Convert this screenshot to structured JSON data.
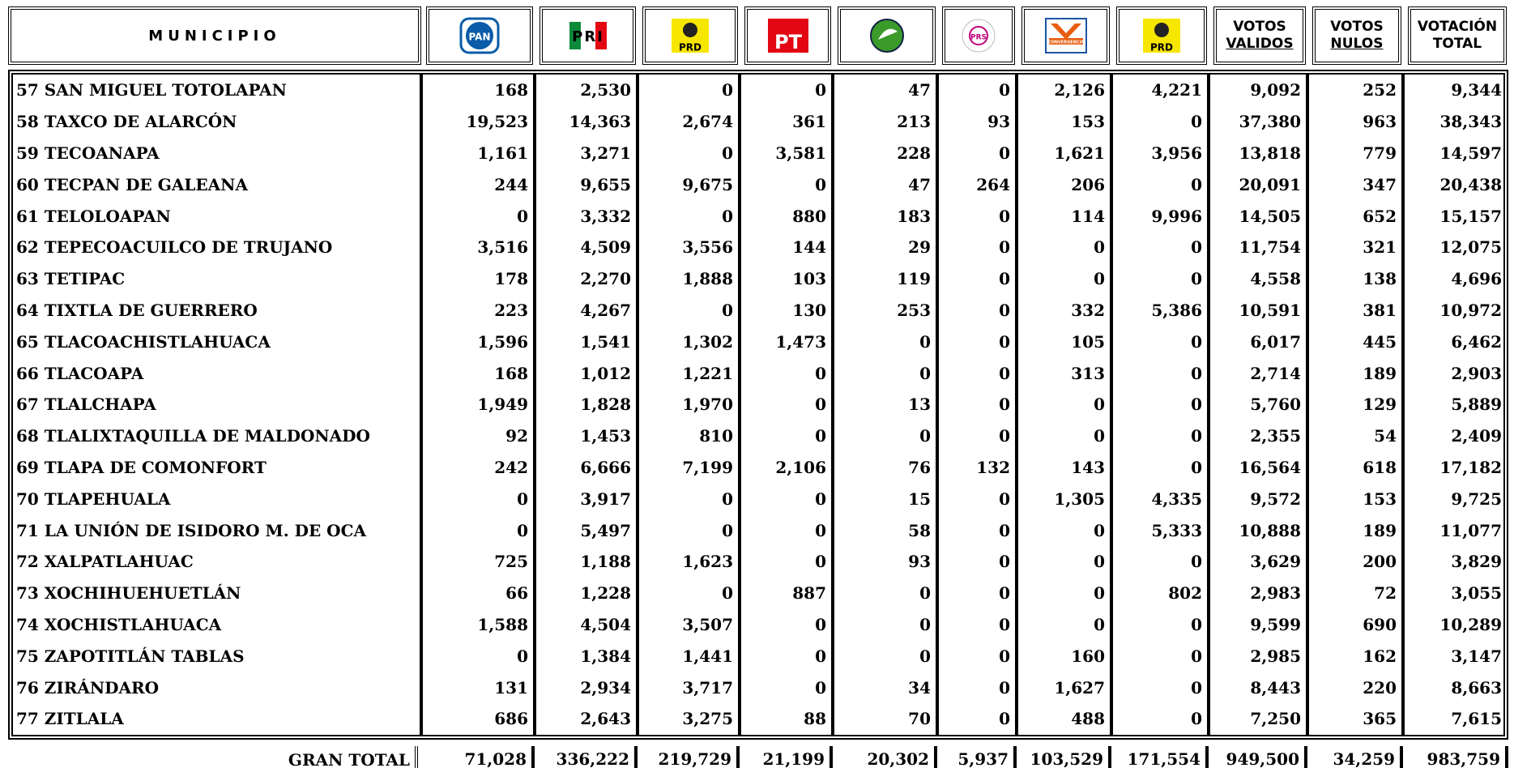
{
  "header": {
    "municipio": "MUNICIPIO",
    "logos": [
      "PAN",
      "PRI",
      null,
      "PT",
      null,
      "PRS",
      "CONVERGENCIA",
      "PRD"
    ],
    "logo_sub": [
      null,
      null,
      "PRD",
      null,
      null,
      null,
      null,
      null
    ],
    "totals": [
      [
        "VOTOS",
        "VALIDOS"
      ],
      [
        "VOTOS",
        "NULOS"
      ],
      [
        "VOTACIÓN",
        "TOTAL"
      ]
    ]
  },
  "table": {
    "rows": [
      [
        "57 SAN MIGUEL TOTOLAPAN",
        "168",
        "2,530",
        "0",
        "0",
        "47",
        "0",
        "2,126",
        "4,221",
        "9,092",
        "252",
        "9,344"
      ],
      [
        "58 TAXCO DE ALARCÓN",
        "19,523",
        "14,363",
        "2,674",
        "361",
        "213",
        "93",
        "153",
        "0",
        "37,380",
        "963",
        "38,343"
      ],
      [
        "59 TECOANAPA",
        "1,161",
        "3,271",
        "0",
        "3,581",
        "228",
        "0",
        "1,621",
        "3,956",
        "13,818",
        "779",
        "14,597"
      ],
      [
        "60 TECPAN DE GALEANA",
        "244",
        "9,655",
        "9,675",
        "0",
        "47",
        "264",
        "206",
        "0",
        "20,091",
        "347",
        "20,438"
      ],
      [
        "61 TELOLOAPAN",
        "0",
        "3,332",
        "0",
        "880",
        "183",
        "0",
        "114",
        "9,996",
        "14,505",
        "652",
        "15,157"
      ],
      [
        "62 TEPECOACUILCO DE TRUJANO",
        "3,516",
        "4,509",
        "3,556",
        "144",
        "29",
        "0",
        "0",
        "0",
        "11,754",
        "321",
        "12,075"
      ],
      [
        "63 TETIPAC",
        "178",
        "2,270",
        "1,888",
        "103",
        "119",
        "0",
        "0",
        "0",
        "4,558",
        "138",
        "4,696"
      ],
      [
        "64 TIXTLA DE GUERRERO",
        "223",
        "4,267",
        "0",
        "130",
        "253",
        "0",
        "332",
        "5,386",
        "10,591",
        "381",
        "10,972"
      ],
      [
        "65 TLACOACHISTLAHUACA",
        "1,596",
        "1,541",
        "1,302",
        "1,473",
        "0",
        "0",
        "105",
        "0",
        "6,017",
        "445",
        "6,462"
      ],
      [
        "66 TLACOAPA",
        "168",
        "1,012",
        "1,221",
        "0",
        "0",
        "0",
        "313",
        "0",
        "2,714",
        "189",
        "2,903"
      ],
      [
        "67 TLALCHAPA",
        "1,949",
        "1,828",
        "1,970",
        "0",
        "13",
        "0",
        "0",
        "0",
        "5,760",
        "129",
        "5,889"
      ],
      [
        "68 TLALIXTAQUILLA DE MALDONADO",
        "92",
        "1,453",
        "810",
        "0",
        "0",
        "0",
        "0",
        "0",
        "2,355",
        "54",
        "2,409"
      ],
      [
        "69 TLAPA DE COMONFORT",
        "242",
        "6,666",
        "7,199",
        "2,106",
        "76",
        "132",
        "143",
        "0",
        "16,564",
        "618",
        "17,182"
      ],
      [
        "70 TLAPEHUALA",
        "0",
        "3,917",
        "0",
        "0",
        "15",
        "0",
        "1,305",
        "4,335",
        "9,572",
        "153",
        "9,725"
      ],
      [
        "71 LA UNIÓN DE ISIDORO M. DE OCA",
        "0",
        "5,497",
        "0",
        "0",
        "58",
        "0",
        "0",
        "5,333",
        "10,888",
        "189",
        "11,077"
      ],
      [
        "72 XALPATLAHUAC",
        "725",
        "1,188",
        "1,623",
        "0",
        "93",
        "0",
        "0",
        "0",
        "3,629",
        "200",
        "3,829"
      ],
      [
        "73 XOCHIHUEHUETLÁN",
        "66",
        "1,228",
        "0",
        "887",
        "0",
        "0",
        "0",
        "802",
        "2,983",
        "72",
        "3,055"
      ],
      [
        "74 XOCHISTLAHUACA",
        "1,588",
        "4,504",
        "3,507",
        "0",
        "0",
        "0",
        "0",
        "0",
        "9,599",
        "690",
        "10,289"
      ],
      [
        "75 ZAPOTITLÁN TABLAS",
        "0",
        "1,384",
        "1,441",
        "0",
        "0",
        "0",
        "160",
        "0",
        "2,985",
        "162",
        "3,147"
      ],
      [
        "76 ZIRÁNDARO",
        "131",
        "2,934",
        "3,717",
        "0",
        "34",
        "0",
        "1,627",
        "0",
        "8,443",
        "220",
        "8,663"
      ],
      [
        "77 ZITLALA",
        "686",
        "2,643",
        "3,275",
        "88",
        "70",
        "0",
        "488",
        "0",
        "7,250",
        "365",
        "7,615"
      ]
    ],
    "total": [
      "GRAN TOTAL",
      "71,028",
      "336,222",
      "219,729",
      "21,199",
      "20,302",
      "5,937",
      "103,529",
      "171,554",
      "949,500",
      "34,259",
      "983,759"
    ]
  }
}
